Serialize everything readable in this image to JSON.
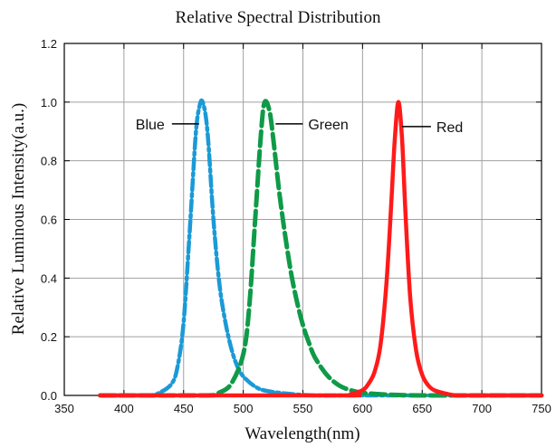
{
  "chart_data": {
    "type": "line",
    "title": "Relative Spectral Distribution",
    "xlabel": "Wavelength(nm)",
    "ylabel": "Relative Luminous Intensity(a.u.)",
    "xlim": [
      350,
      750
    ],
    "ylim": [
      0,
      1.2
    ],
    "xticks": [
      350,
      400,
      450,
      500,
      550,
      600,
      650,
      700,
      750
    ],
    "yticks": [
      0.0,
      0.2,
      0.4,
      0.6,
      0.8,
      1.0,
      1.2
    ],
    "xtick_labels": [
      "350",
      "400",
      "450",
      "500",
      "550",
      "600",
      "650",
      "700",
      "750"
    ],
    "ytick_labels": [
      "0.0",
      "0.2",
      "0.4",
      "0.6",
      "0.8",
      "1.0",
      "1.2"
    ],
    "grid": true,
    "series": [
      {
        "name": "Blue",
        "color": "#1a9ad6",
        "style": "dash-dot",
        "x": [
          380,
          420,
          430,
          440,
          445,
          450,
          455,
          460,
          463,
          466,
          470,
          475,
          480,
          485,
          490,
          495,
          500,
          510,
          520,
          540,
          560,
          600,
          650,
          700,
          750
        ],
        "values": [
          0.0,
          0.0,
          0.01,
          0.04,
          0.1,
          0.25,
          0.55,
          0.88,
          0.98,
          1.0,
          0.9,
          0.6,
          0.38,
          0.25,
          0.16,
          0.1,
          0.065,
          0.03,
          0.015,
          0.005,
          0.0,
          0.0,
          0.0,
          0.0,
          0.0
        ]
      },
      {
        "name": "Green",
        "color": "#0f9a48",
        "style": "dashed",
        "x": [
          380,
          470,
          480,
          490,
          500,
          505,
          510,
          515,
          518,
          522,
          525,
          530,
          535,
          540,
          545,
          550,
          555,
          560,
          570,
          580,
          590,
          600,
          620,
          650,
          700,
          750
        ],
        "values": [
          0.0,
          0.0,
          0.01,
          0.04,
          0.14,
          0.3,
          0.6,
          0.9,
          1.0,
          0.97,
          0.88,
          0.7,
          0.55,
          0.42,
          0.32,
          0.24,
          0.18,
          0.13,
          0.07,
          0.035,
          0.018,
          0.009,
          0.003,
          0.0,
          0.0,
          0.0
        ]
      },
      {
        "name": "Red",
        "color": "#ff1a1a",
        "style": "solid",
        "x": [
          380,
          580,
          590,
          600,
          605,
          610,
          615,
          620,
          624,
          627,
          630,
          633,
          636,
          640,
          645,
          650,
          655,
          660,
          670,
          680,
          700,
          750
        ],
        "values": [
          0.0,
          0.0,
          0.004,
          0.018,
          0.04,
          0.08,
          0.17,
          0.38,
          0.65,
          0.87,
          1.0,
          0.88,
          0.62,
          0.33,
          0.15,
          0.07,
          0.035,
          0.018,
          0.006,
          0.0,
          0.0,
          0.0
        ]
      }
    ],
    "annotations": [
      {
        "text": "Blue",
        "series": "Blue"
      },
      {
        "text": "Green",
        "series": "Green"
      },
      {
        "text": "Red",
        "series": "Red"
      }
    ]
  }
}
